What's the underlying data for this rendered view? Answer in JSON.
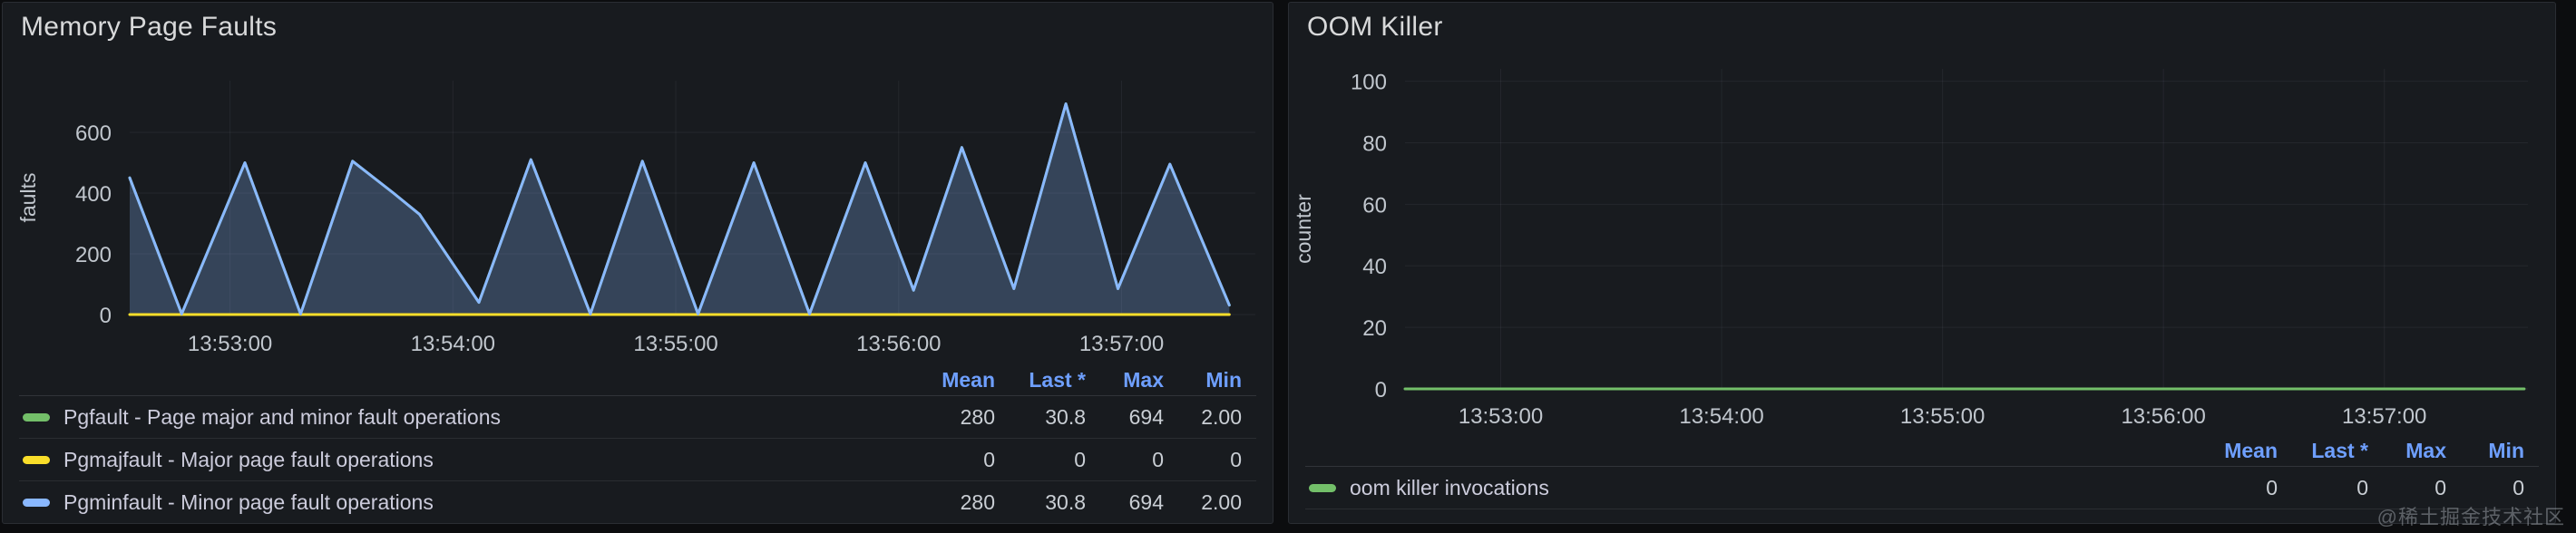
{
  "watermark": "@稀土掘金技术社区",
  "theme": {
    "page_bg": "#0c0d0f",
    "panel_bg": "#181b1f",
    "panel_border": "#2a2d33",
    "title_color": "#d8d9da",
    "tick_color": "#c0c6cd",
    "grid_color": "rgba(204,204,220,0.07)",
    "stat_header_color": "#6e9fff",
    "legend_text_color": "#ccccdc",
    "series_green": "#73bf69",
    "series_yellow": "#fade2a",
    "series_blue": "#8ab8ff"
  },
  "chart_data": [
    {
      "type": "area",
      "title": "Memory Page Faults",
      "xlabel": "",
      "ylabel": "faults",
      "ylim": [
        0,
        770
      ],
      "yticks": [
        0,
        200,
        400,
        600
      ],
      "xticks": [
        "13:53:00",
        "13:54:00",
        "13:55:00",
        "13:56:00",
        "13:57:00"
      ],
      "x_range": [
        "13:52:33",
        "13:57:36"
      ],
      "grid": true,
      "legend_position": "bottom-table",
      "stat_columns": [
        "Mean",
        "Last *",
        "Max",
        "Min"
      ],
      "series": [
        {
          "name": "Pgfault - Page major and minor fault operations",
          "color": "#73bf69",
          "fill": false,
          "stats": [
            "280",
            "30.8",
            "694",
            "2.00"
          ],
          "points": [
            [
              "13:52:33",
              450
            ],
            [
              "13:52:47",
              2
            ],
            [
              "13:53:04",
              500
            ],
            [
              "13:53:19",
              2
            ],
            [
              "13:53:33",
              505
            ],
            [
              "13:53:44",
              400
            ],
            [
              "13:53:51",
              330
            ],
            [
              "13:54:07",
              40
            ],
            [
              "13:54:21",
              510
            ],
            [
              "13:54:37",
              2
            ],
            [
              "13:54:51",
              505
            ],
            [
              "13:55:06",
              2
            ],
            [
              "13:55:21",
              500
            ],
            [
              "13:55:36",
              2
            ],
            [
              "13:55:51",
              500
            ],
            [
              "13:56:04",
              80
            ],
            [
              "13:56:17",
              550
            ],
            [
              "13:56:31",
              85
            ],
            [
              "13:56:45",
              694
            ],
            [
              "13:56:59",
              85
            ],
            [
              "13:57:13",
              495
            ],
            [
              "13:57:29",
              31
            ]
          ]
        },
        {
          "name": "Pgmajfault - Major page fault operations",
          "color": "#fade2a",
          "fill": false,
          "stats": [
            "0",
            "0",
            "0",
            "0"
          ],
          "points": [
            [
              "13:52:33",
              0
            ],
            [
              "13:57:29",
              0
            ]
          ]
        },
        {
          "name": "Pgminfault - Minor page fault operations",
          "color": "#8ab8ff",
          "fill": true,
          "stats": [
            "280",
            "30.8",
            "694",
            "2.00"
          ],
          "points": [
            [
              "13:52:33",
              450
            ],
            [
              "13:52:47",
              2
            ],
            [
              "13:53:04",
              500
            ],
            [
              "13:53:19",
              2
            ],
            [
              "13:53:33",
              505
            ],
            [
              "13:53:44",
              400
            ],
            [
              "13:53:51",
              330
            ],
            [
              "13:54:07",
              40
            ],
            [
              "13:54:21",
              510
            ],
            [
              "13:54:37",
              2
            ],
            [
              "13:54:51",
              505
            ],
            [
              "13:55:06",
              2
            ],
            [
              "13:55:21",
              500
            ],
            [
              "13:55:36",
              2
            ],
            [
              "13:55:51",
              500
            ],
            [
              "13:56:04",
              80
            ],
            [
              "13:56:17",
              550
            ],
            [
              "13:56:31",
              85
            ],
            [
              "13:56:45",
              694
            ],
            [
              "13:56:59",
              85
            ],
            [
              "13:57:13",
              495
            ],
            [
              "13:57:29",
              31
            ]
          ]
        }
      ]
    },
    {
      "type": "line",
      "title": "OOM Killer",
      "xlabel": "",
      "ylabel": "counter",
      "ylim": [
        0,
        104
      ],
      "yticks": [
        0,
        20,
        40,
        60,
        80,
        100
      ],
      "xticks": [
        "13:53:00",
        "13:54:00",
        "13:55:00",
        "13:56:00",
        "13:57:00"
      ],
      "x_range": [
        "13:52:34",
        "13:57:39"
      ],
      "grid": true,
      "legend_position": "bottom-table",
      "stat_columns": [
        "Mean",
        "Last *",
        "Max",
        "Min"
      ],
      "series": [
        {
          "name": "oom killer invocations",
          "color": "#73bf69",
          "fill": false,
          "stats": [
            "0",
            "0",
            "0",
            "0"
          ],
          "points": [
            [
              "13:52:34",
              0
            ],
            [
              "13:57:38",
              0
            ]
          ]
        }
      ]
    }
  ]
}
